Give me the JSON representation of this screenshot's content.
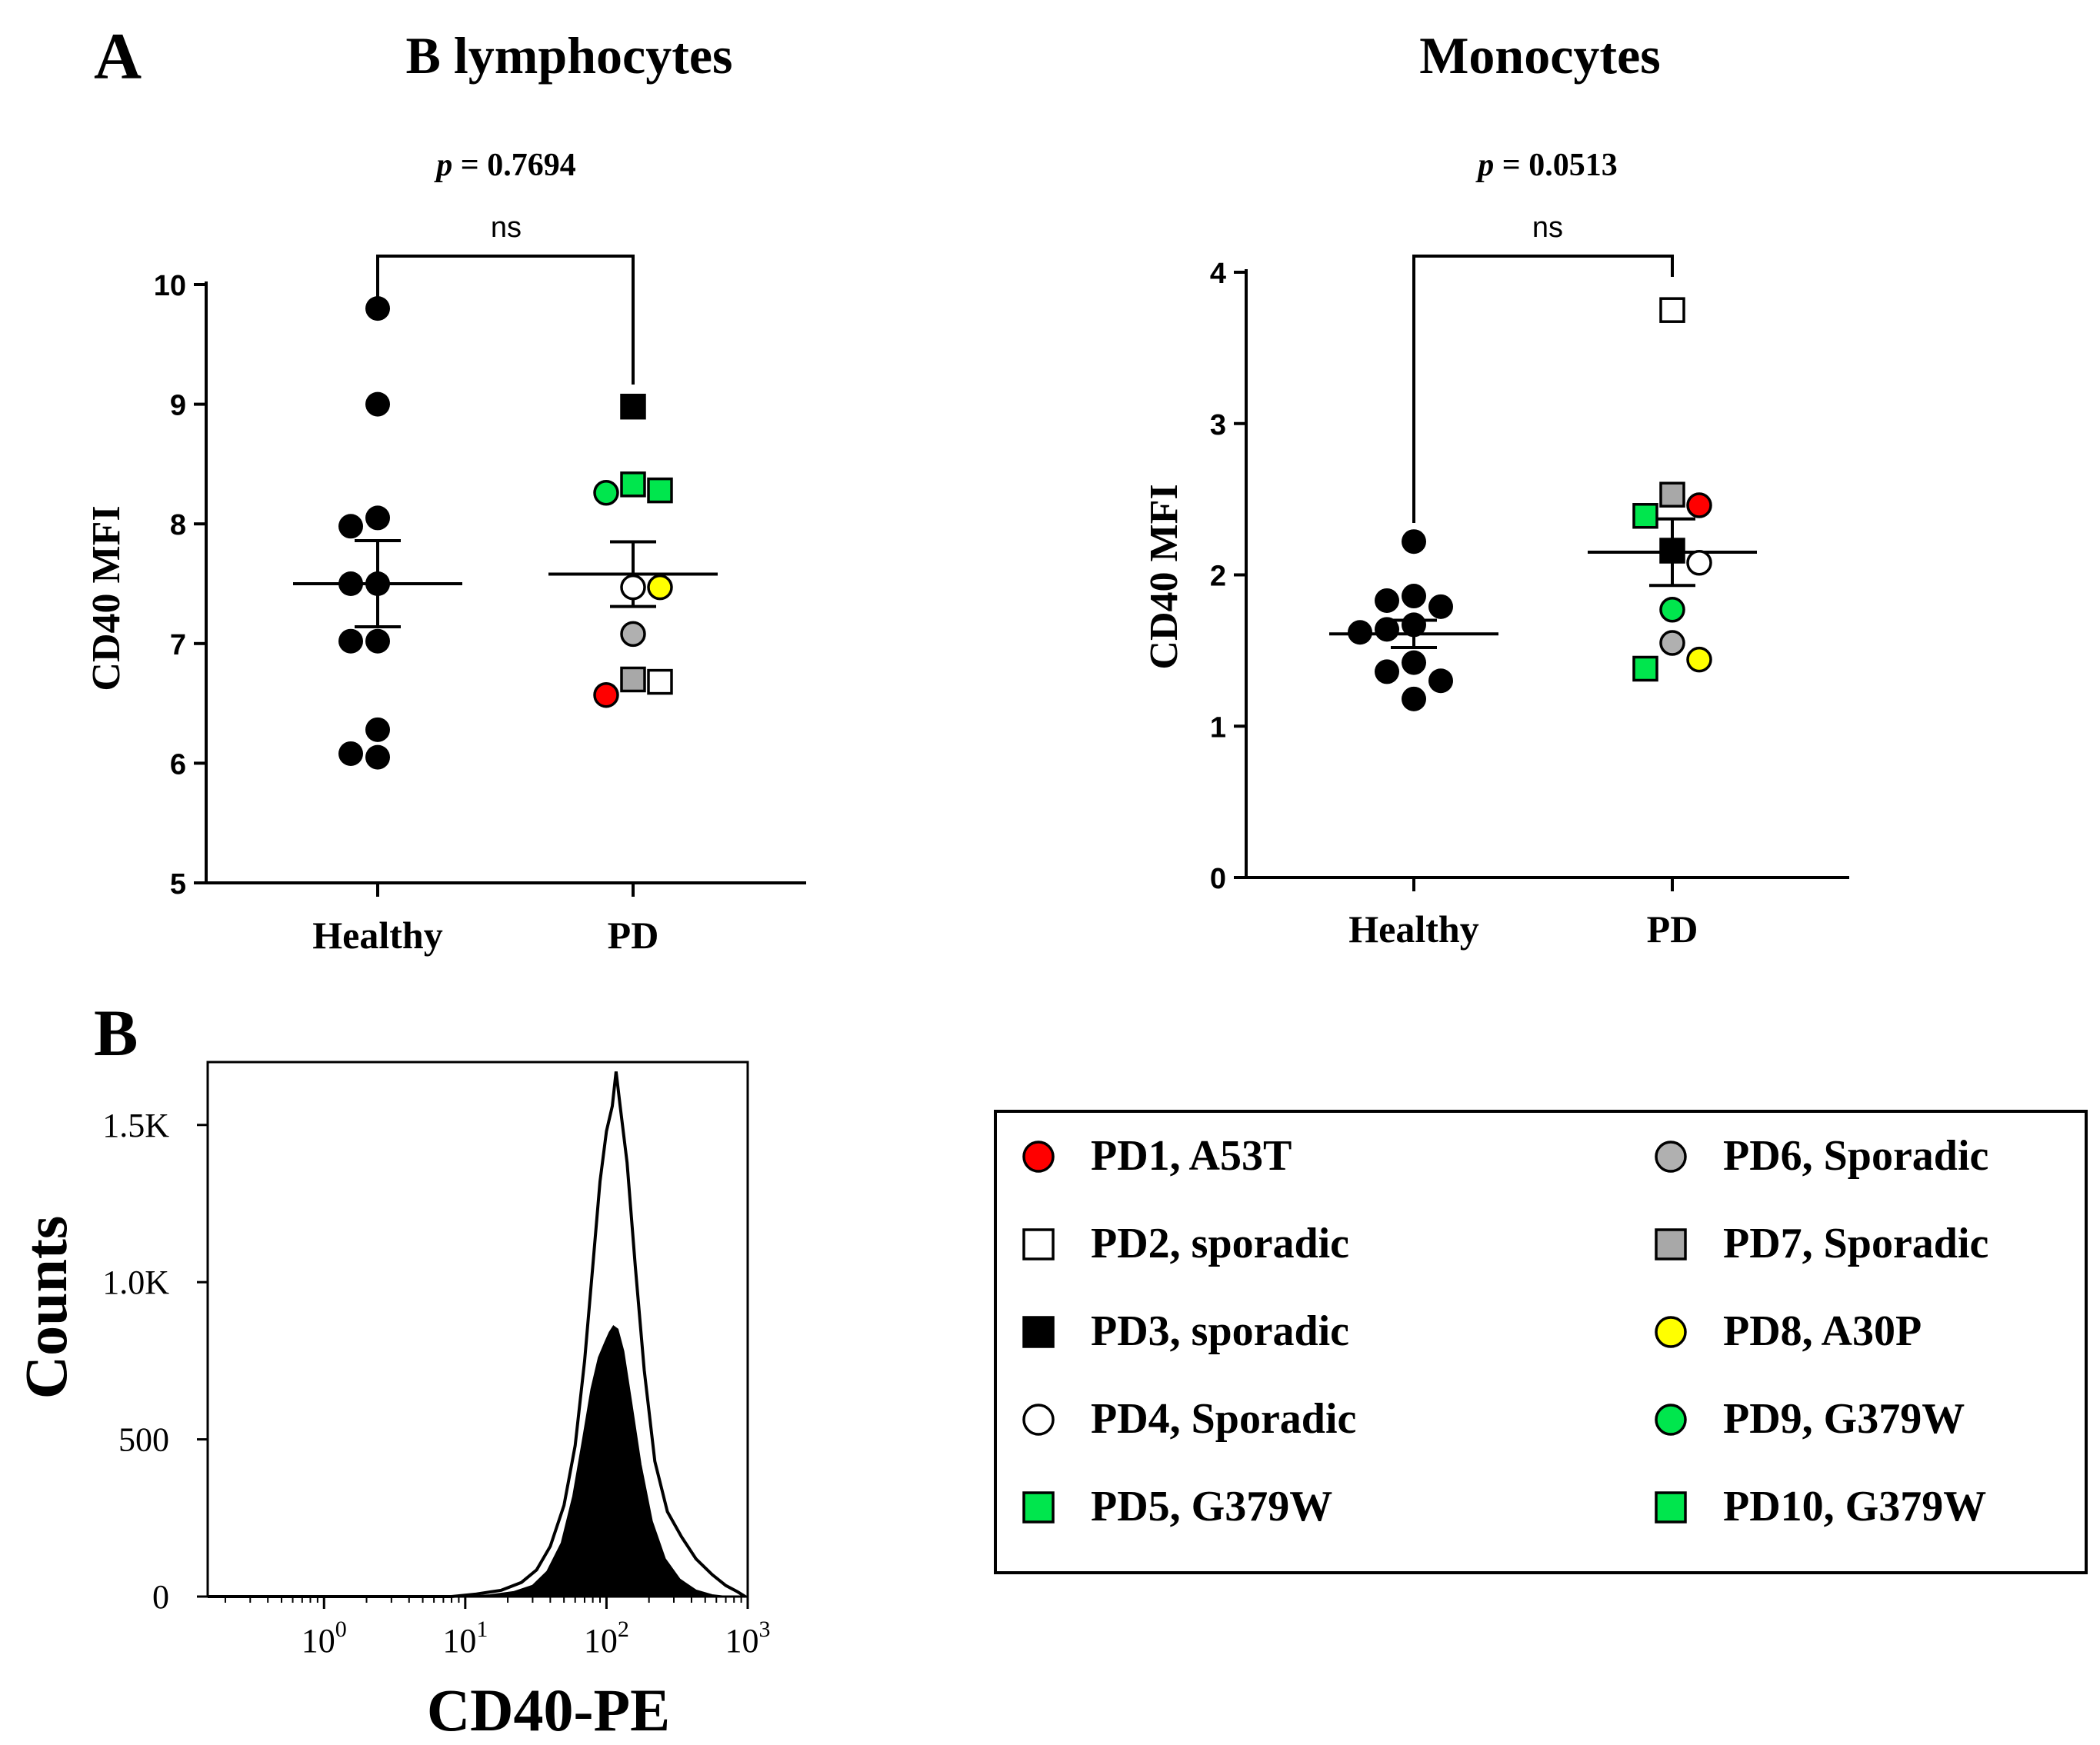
{
  "panel_labels": {
    "a": "A",
    "b": "B"
  },
  "chart_data": [
    {
      "type": "scatter",
      "panel": "A",
      "title": "B lymphocytes",
      "ylabel": "CD40 MFI",
      "xlabel": "",
      "categories": [
        "Healthy",
        "PD"
      ],
      "ylim": [
        5,
        10
      ],
      "yticks": [
        "5",
        "6",
        "7",
        "8",
        "9",
        "10"
      ],
      "significance": {
        "p_text": "p = 0.7694",
        "p_italic": "p",
        "p_rest": " = 0.7694",
        "label": "ns"
      },
      "summary": {
        "Healthy": {
          "mean": 7.5,
          "sem_low": 7.14,
          "sem_high": 7.86
        },
        "PD": {
          "mean": 7.58,
          "sem_low": 7.31,
          "sem_high": 7.85
        }
      },
      "healthy_values": [
        9.8,
        9.0,
        7.98,
        8.05,
        7.5,
        7.5,
        7.02,
        7.02,
        6.28,
        6.05,
        6.08
      ],
      "pd_points": [
        {
          "id": "PD1",
          "value": 6.57
        },
        {
          "id": "PD2",
          "value": 6.68
        },
        {
          "id": "PD3",
          "value": 8.98
        },
        {
          "id": "PD4",
          "value": 7.47
        },
        {
          "id": "PD5",
          "value": 8.28
        },
        {
          "id": "PD6",
          "value": 7.08
        },
        {
          "id": "PD7",
          "value": 6.7
        },
        {
          "id": "PD8",
          "value": 7.47
        },
        {
          "id": "PD9",
          "value": 8.26
        },
        {
          "id": "PD10",
          "value": 8.33
        }
      ]
    },
    {
      "type": "scatter",
      "panel": "A",
      "title": "Monocytes",
      "ylabel": "CD40 MFI",
      "xlabel": "",
      "categories": [
        "Healthy",
        "PD"
      ],
      "ylim": [
        0,
        4
      ],
      "yticks": [
        "0",
        "1",
        "2",
        "3",
        "4"
      ],
      "significance": {
        "p_text": "p = 0.0513",
        "p_italic": "p",
        "p_rest": " = 0.0513",
        "label": "ns"
      },
      "summary": {
        "Healthy": {
          "mean": 1.61,
          "sem_low": 1.52,
          "sem_high": 1.7
        },
        "PD": {
          "mean": 2.15,
          "sem_low": 1.93,
          "sem_high": 2.37
        }
      },
      "healthy_values": [
        2.22,
        1.83,
        1.86,
        1.79,
        1.64,
        1.67,
        1.62,
        1.42,
        1.36,
        1.3,
        1.18
      ],
      "pd_points": [
        {
          "id": "PD1",
          "value": 2.46
        },
        {
          "id": "PD2",
          "value": 3.75
        },
        {
          "id": "PD3",
          "value": 2.16
        },
        {
          "id": "PD4",
          "value": 2.08
        },
        {
          "id": "PD5",
          "value": 1.38
        },
        {
          "id": "PD6",
          "value": 1.55
        },
        {
          "id": "PD7",
          "value": 2.53
        },
        {
          "id": "PD8",
          "value": 1.44
        },
        {
          "id": "PD9",
          "value": 1.77
        },
        {
          "id": "PD10",
          "value": 2.39
        }
      ]
    },
    {
      "type": "area",
      "panel": "B",
      "title": "",
      "xlabel": "CD40-PE",
      "ylabel": "Counts",
      "xscale": "log",
      "xlim": [
        0.15,
        1000
      ],
      "ylim": [
        0,
        1700
      ],
      "xticks": [
        {
          "base": "10",
          "exp": "0",
          "value": 1
        },
        {
          "base": "10",
          "exp": "1",
          "value": 10
        },
        {
          "base": "10",
          "exp": "2",
          "value": 100
        },
        {
          "base": "10",
          "exp": "3",
          "value": 1000
        }
      ],
      "yticks": [
        {
          "label": "0",
          "value": 0
        },
        {
          "label": "500",
          "value": 500
        },
        {
          "label": "1.0K",
          "value": 1000
        },
        {
          "label": "1.5K",
          "value": 1500
        }
      ],
      "series": [
        {
          "style": "outline",
          "points": [
            [
              0.15,
              0
            ],
            [
              8,
              0
            ],
            [
              12,
              8
            ],
            [
              18,
              20
            ],
            [
              25,
              45
            ],
            [
              32,
              85
            ],
            [
              40,
              160
            ],
            [
              50,
              290
            ],
            [
              60,
              480
            ],
            [
              70,
              750
            ],
            [
              80,
              1050
            ],
            [
              90,
              1320
            ],
            [
              100,
              1480
            ],
            [
              110,
              1560
            ],
            [
              117,
              1670
            ],
            [
              125,
              1560
            ],
            [
              140,
              1380
            ],
            [
              160,
              1050
            ],
            [
              185,
              720
            ],
            [
              220,
              430
            ],
            [
              270,
              270
            ],
            [
              340,
              190
            ],
            [
              430,
              120
            ],
            [
              560,
              70
            ],
            [
              700,
              35
            ],
            [
              850,
              15
            ],
            [
              960,
              0
            ]
          ]
        },
        {
          "style": "filled",
          "points": [
            [
              0.15,
              0
            ],
            [
              10,
              0
            ],
            [
              15,
              5
            ],
            [
              22,
              15
            ],
            [
              30,
              35
            ],
            [
              38,
              80
            ],
            [
              48,
              170
            ],
            [
              58,
              320
            ],
            [
              68,
              500
            ],
            [
              78,
              660
            ],
            [
              88,
              760
            ],
            [
              98,
              810
            ],
            [
              105,
              840
            ],
            [
              112,
              860
            ],
            [
              120,
              850
            ],
            [
              132,
              780
            ],
            [
              150,
              620
            ],
            [
              175,
              420
            ],
            [
              210,
              240
            ],
            [
              260,
              120
            ],
            [
              330,
              55
            ],
            [
              430,
              20
            ],
            [
              560,
              5
            ],
            [
              700,
              0
            ],
            [
              960,
              0
            ]
          ]
        }
      ]
    }
  ],
  "legend": {
    "entries": [
      {
        "id": "PD1",
        "label": "PD1, A53T",
        "shape": "circle",
        "color": "#ff0000"
      },
      {
        "id": "PD2",
        "label": "PD2, sporadic",
        "shape": "square",
        "color": "#ffffff"
      },
      {
        "id": "PD3",
        "label": "PD3, sporadic",
        "shape": "square",
        "color": "#000000"
      },
      {
        "id": "PD4",
        "label": "PD4, Sporadic",
        "shape": "circle",
        "color": "#ffffff"
      },
      {
        "id": "PD5",
        "label": "PD5, G379W",
        "shape": "square",
        "color": "#00e64d"
      },
      {
        "id": "PD6",
        "label": "PD6, Sporadic",
        "shape": "circle",
        "color": "#b0b0b0"
      },
      {
        "id": "PD7",
        "label": "PD7, Sporadic",
        "shape": "square",
        "color": "#a8a8a8"
      },
      {
        "id": "PD8",
        "label": "PD8, A30P",
        "shape": "circle",
        "color": "#ffff00"
      },
      {
        "id": "PD9",
        "label": "PD9, G379W",
        "shape": "circle",
        "color": "#00e64d"
      },
      {
        "id": "PD10",
        "label": "PD10, G379W",
        "shape": "square",
        "color": "#00e64d"
      }
    ]
  },
  "colors": {
    "healthy": "#000000",
    "axis": "#000000",
    "histogram_fill": "#000000"
  }
}
